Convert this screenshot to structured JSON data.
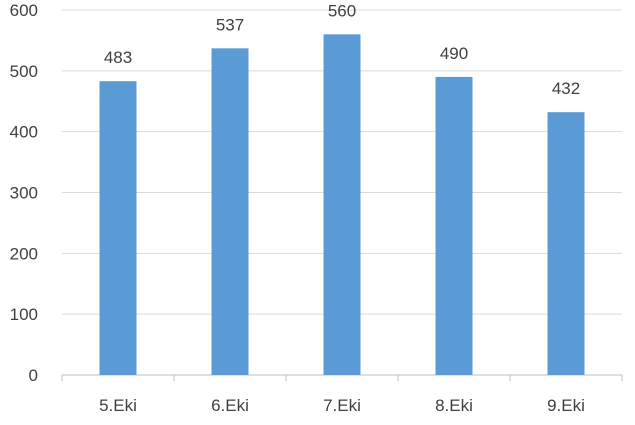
{
  "chart_data": {
    "type": "bar",
    "title": "",
    "xlabel": "",
    "ylabel": "",
    "categories": [
      "5.Eki",
      "6.Eki",
      "7.Eki",
      "8.Eki",
      "9.Eki"
    ],
    "series": [
      {
        "values": [
          483,
          537,
          560,
          490,
          432
        ]
      }
    ],
    "data_labels": [
      "483",
      "537",
      "560",
      "490",
      "432"
    ],
    "ylim": [
      0,
      600
    ],
    "yticks": [
      0,
      100,
      200,
      300,
      400,
      500,
      600
    ],
    "ytick_labels": [
      "0",
      "100",
      "200",
      "300",
      "400",
      "500",
      "600"
    ],
    "grid": true,
    "legend": "none",
    "colors": {
      "bar": "#5B9BD5",
      "gridline": "#D9D9D9",
      "axis": "#BFBFBF",
      "text": "#404040"
    }
  }
}
